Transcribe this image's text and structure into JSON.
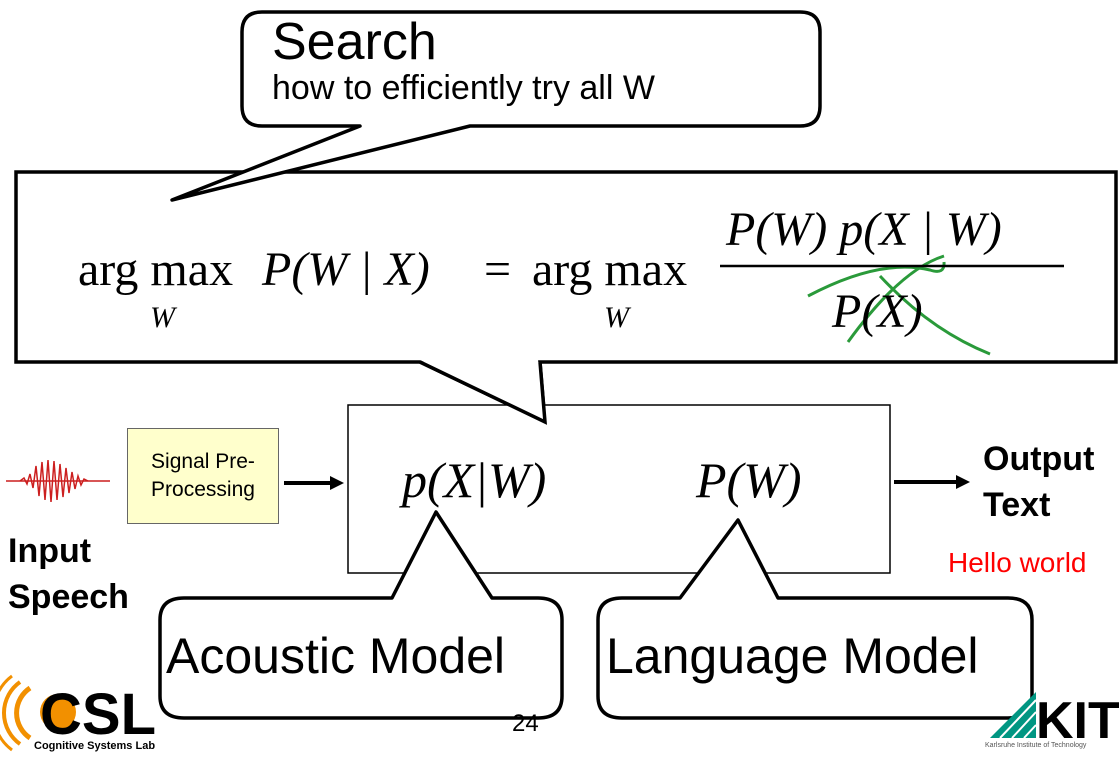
{
  "search": {
    "title": "Search",
    "subtitle": "how to efficiently try all W"
  },
  "equation": {
    "lhs_op": "arg max",
    "lhs_sub": "W",
    "lhs_expr": "P(W | X)",
    "equals": "=",
    "rhs_op": "arg max",
    "rhs_sub": "W",
    "numerator": "P(W) p(X | W)",
    "denominator": "P(X)",
    "crossout_color": "#2a9a3a"
  },
  "pipeline": {
    "signal_box": "Signal Pre-Processing",
    "input_label_line1": "Input",
    "input_label_line2": "Speech",
    "acoustic_term": "p(X|W)",
    "language_term": "P(W)",
    "output_line1": "Output",
    "output_line2": "Text",
    "output_example": "Hello world"
  },
  "models": {
    "acoustic": "Acoustic Model",
    "language": "Language Model"
  },
  "footer": {
    "page_number": "24",
    "csl_logo": "CSL",
    "csl_caption": "Cognitive Systems Lab",
    "kit_logo": "KIT",
    "kit_caption": "Karlsruhe Institute of Technology"
  },
  "colors": {
    "signal_box_fill": "#ffffcc",
    "wave": "#cc1f1f",
    "hello": "#ff0000",
    "csl_orange": "#f29000",
    "kit_green": "#009682"
  }
}
